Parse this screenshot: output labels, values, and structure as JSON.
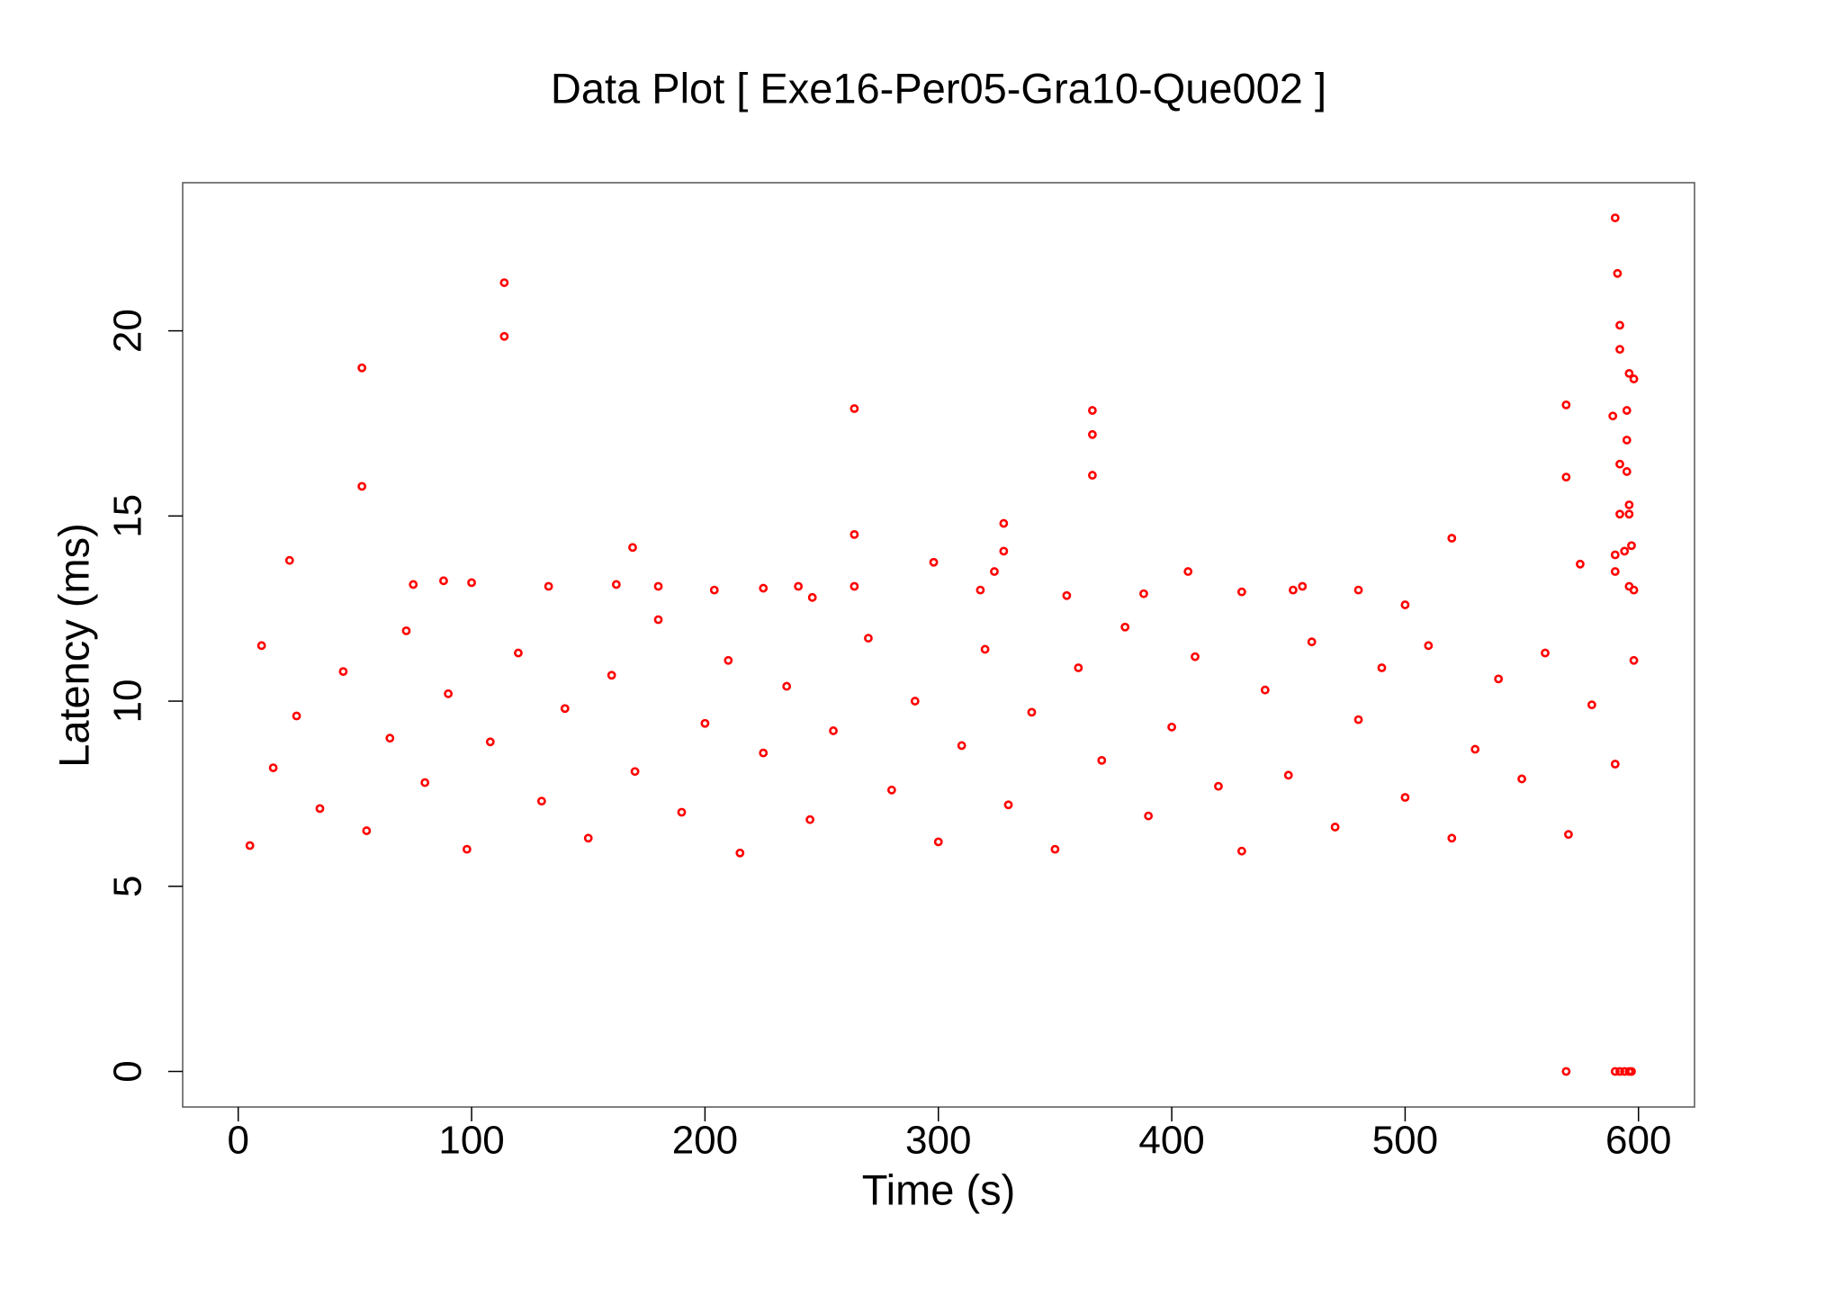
{
  "chart_data": {
    "type": "scatter",
    "title": "Data Plot [ Exe16-Per05-Gra10-Que002 ]",
    "x_label": "Time (s)",
    "y_label": "Latency (ms)",
    "color": "#ff0000",
    "xlim": [
      -23.8,
      624
    ],
    "ylim": [
      -0.96,
      24.0
    ],
    "xticks": [
      0,
      100,
      200,
      300,
      400,
      500,
      600
    ],
    "yticks": [
      0,
      5,
      10,
      15,
      20
    ],
    "grid": false,
    "x": [
      22,
      53,
      53,
      114,
      114,
      169,
      264,
      264,
      264,
      298,
      328,
      328,
      324,
      366,
      366,
      366,
      407,
      520,
      569,
      569,
      569,
      575,
      590,
      591,
      592,
      592,
      596,
      598,
      595,
      589,
      595,
      592,
      595,
      596,
      596,
      592,
      597,
      594,
      590,
      590,
      596,
      598,
      590,
      592,
      594,
      596,
      597,
      88,
      75,
      100,
      133,
      162,
      180,
      204,
      225,
      240,
      246,
      318,
      355,
      388,
      430,
      480,
      456,
      452,
      500,
      5,
      10,
      15,
      25,
      35,
      45,
      55,
      65,
      72,
      80,
      90,
      98,
      108,
      120,
      130,
      140,
      150,
      160,
      170,
      180,
      190,
      200,
      210,
      215,
      225,
      235,
      245,
      255,
      270,
      280,
      290,
      300,
      310,
      320,
      330,
      340,
      350,
      360,
      370,
      380,
      390,
      400,
      410,
      420,
      430,
      440,
      450,
      460,
      470,
      480,
      490,
      500,
      510,
      520,
      530,
      540,
      550,
      560,
      570,
      580,
      590,
      598
    ],
    "values": [
      13.8,
      19,
      15.8,
      21.3,
      19.85,
      14.15,
      17.9,
      14.5,
      13.1,
      13.75,
      14.8,
      14.05,
      13.5,
      17.85,
      17.2,
      16.1,
      13.5,
      14.4,
      18,
      16.05,
      0,
      13.7,
      23.05,
      21.55,
      20.15,
      19.5,
      18.85,
      18.7,
      17.85,
      17.7,
      17.05,
      16.4,
      16.2,
      15.3,
      15.05,
      15.05,
      14.2,
      14.05,
      13.95,
      13.5,
      13.1,
      13,
      0,
      0,
      0,
      0,
      0,
      13.25,
      13.15,
      13.2,
      13.1,
      13.15,
      13.1,
      13,
      13.05,
      13.1,
      12.8,
      13,
      12.85,
      12.9,
      12.95,
      13,
      13.1,
      13,
      12.6,
      6.1,
      11.5,
      8.2,
      9.6,
      7.1,
      10.8,
      6.5,
      9.0,
      11.9,
      7.8,
      10.2,
      6.0,
      8.9,
      11.3,
      7.3,
      9.8,
      6.3,
      10.7,
      8.1,
      12.2,
      7.0,
      9.4,
      11.1,
      5.9,
      8.6,
      10.4,
      6.8,
      9.2,
      11.7,
      7.6,
      10.0,
      6.2,
      8.8,
      11.4,
      7.2,
      9.7,
      6.0,
      10.9,
      8.4,
      12.0,
      6.9,
      9.3,
      11.2,
      7.7,
      5.95,
      10.3,
      8.0,
      11.6,
      6.6,
      9.5,
      10.9,
      7.4,
      11.5,
      6.3,
      8.7,
      10.6,
      7.9,
      11.3,
      6.4,
      9.9,
      8.3,
      11.1
    ]
  }
}
